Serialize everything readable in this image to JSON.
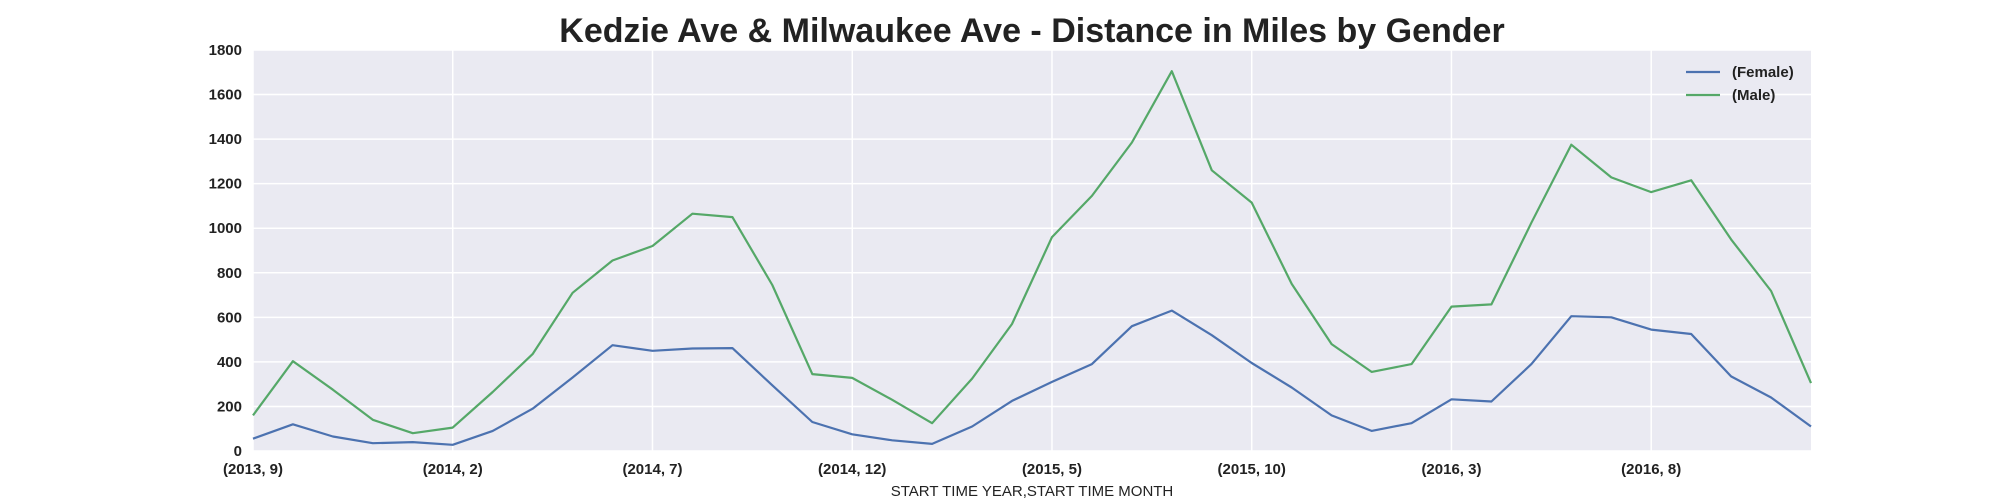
{
  "chart_data": {
    "type": "line",
    "title": "Kedzie Ave & Milwaukee Ave - Distance in Miles by Gender",
    "xlabel": "START TIME YEAR,START TIME MONTH",
    "ylabel": "",
    "ylim": [
      0,
      1800
    ],
    "yticks": [
      0,
      200,
      400,
      600,
      800,
      1000,
      1200,
      1400,
      1600,
      1800
    ],
    "x": [
      "(2013, 9)",
      "(2013, 10)",
      "(2013, 11)",
      "(2013, 12)",
      "(2014, 1)",
      "(2014, 2)",
      "(2014, 3)",
      "(2014, 4)",
      "(2014, 5)",
      "(2014, 6)",
      "(2014, 7)",
      "(2014, 8)",
      "(2014, 9)",
      "(2014, 10)",
      "(2014, 11)",
      "(2014, 12)",
      "(2015, 1)",
      "(2015, 2)",
      "(2015, 3)",
      "(2015, 4)",
      "(2015, 5)",
      "(2015, 6)",
      "(2015, 7)",
      "(2015, 8)",
      "(2015, 9)",
      "(2015, 10)",
      "(2015, 11)",
      "(2015, 12)",
      "(2016, 1)",
      "(2016, 2)",
      "(2016, 3)",
      "(2016, 4)",
      "(2016, 5)",
      "(2016, 6)",
      "(2016, 7)",
      "(2016, 8)",
      "(2016, 9)",
      "(2016, 10)",
      "(2016, 11)",
      "(2016, 12)"
    ],
    "xtick_labels": [
      "(2013, 9)",
      "(2014, 2)",
      "(2014, 7)",
      "(2014, 12)",
      "(2015, 5)",
      "(2015, 10)",
      "(2016, 3)",
      "(2016, 8)"
    ],
    "xtick_indices": [
      0,
      5,
      10,
      15,
      20,
      25,
      30,
      35
    ],
    "grid": true,
    "legend_position": "top-right",
    "series": [
      {
        "name": "(Female)",
        "color": "#4c72b0",
        "values": [
          55,
          120,
          65,
          35,
          40,
          28,
          90,
          190,
          330,
          475,
          450,
          460,
          462,
          295,
          130,
          75,
          48,
          32,
          110,
          225,
          310,
          390,
          560,
          630,
          520,
          395,
          285,
          160,
          90,
          125,
          232,
          222,
          390,
          605,
          600,
          545,
          525,
          335,
          240,
          110
        ]
      },
      {
        "name": "(Male)",
        "color": "#55a868",
        "values": [
          160,
          403,
          275,
          140,
          80,
          105,
          265,
          435,
          710,
          855,
          920,
          1065,
          1050,
          745,
          345,
          328,
          230,
          125,
          325,
          570,
          960,
          1145,
          1385,
          1705,
          1260,
          1115,
          750,
          480,
          355,
          390,
          648,
          658,
          1025,
          1375,
          1228,
          1162,
          1215,
          950,
          718,
          305
        ]
      }
    ]
  }
}
